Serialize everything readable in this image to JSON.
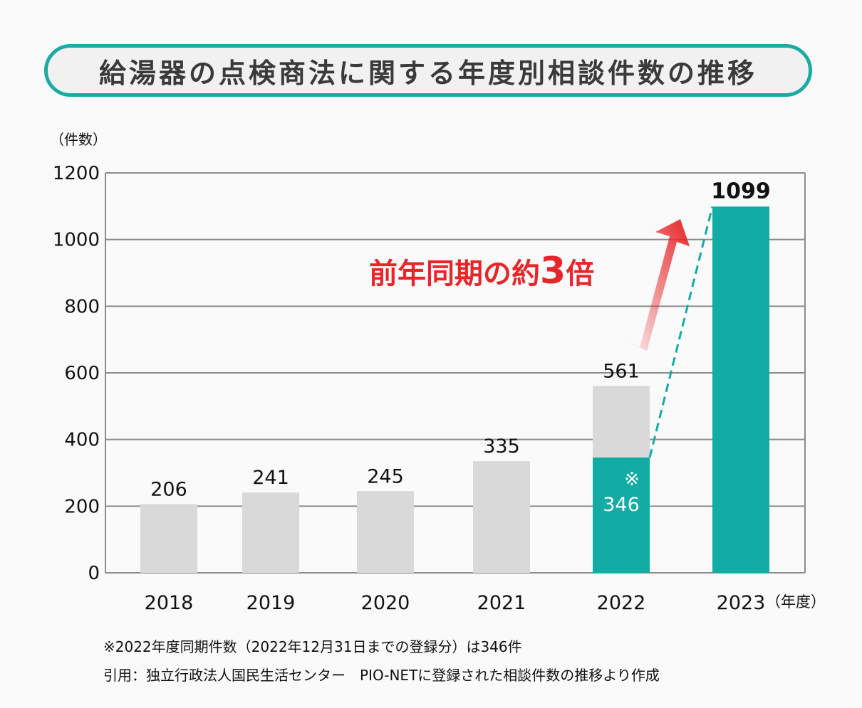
{
  "chart_data": {
    "type": "bar",
    "title": "給湯器の点検商法に関する年度別相談件数の推移",
    "ylabel": "（件数）",
    "xlabel": "（年度）",
    "ylim": [
      0,
      1200
    ],
    "yticks": [
      0,
      200,
      400,
      600,
      800,
      1000,
      1200
    ],
    "grid": true,
    "categories": [
      "2018",
      "2019",
      "2020",
      "2021",
      "2022",
      "2023"
    ],
    "values": [
      206,
      241,
      245,
      335,
      561,
      1099
    ],
    "same_period_2022": {
      "value": 346,
      "label": "346",
      "marker": "※"
    },
    "annotation": {
      "text": "前年同期の約",
      "emphasis": "3",
      "suffix": "倍"
    },
    "colors": {
      "gray": "#d9d9d9",
      "teal": "#12aca4",
      "red": "#e8262a",
      "grid": "#8c8c8c"
    }
  },
  "footnotes": [
    "※2022年度同期件数（2022年12月31日までの登録分）は346件",
    "引用：独立行政法人国民生活センター　PIO-NETに登録された相談件数の推移より作成"
  ]
}
